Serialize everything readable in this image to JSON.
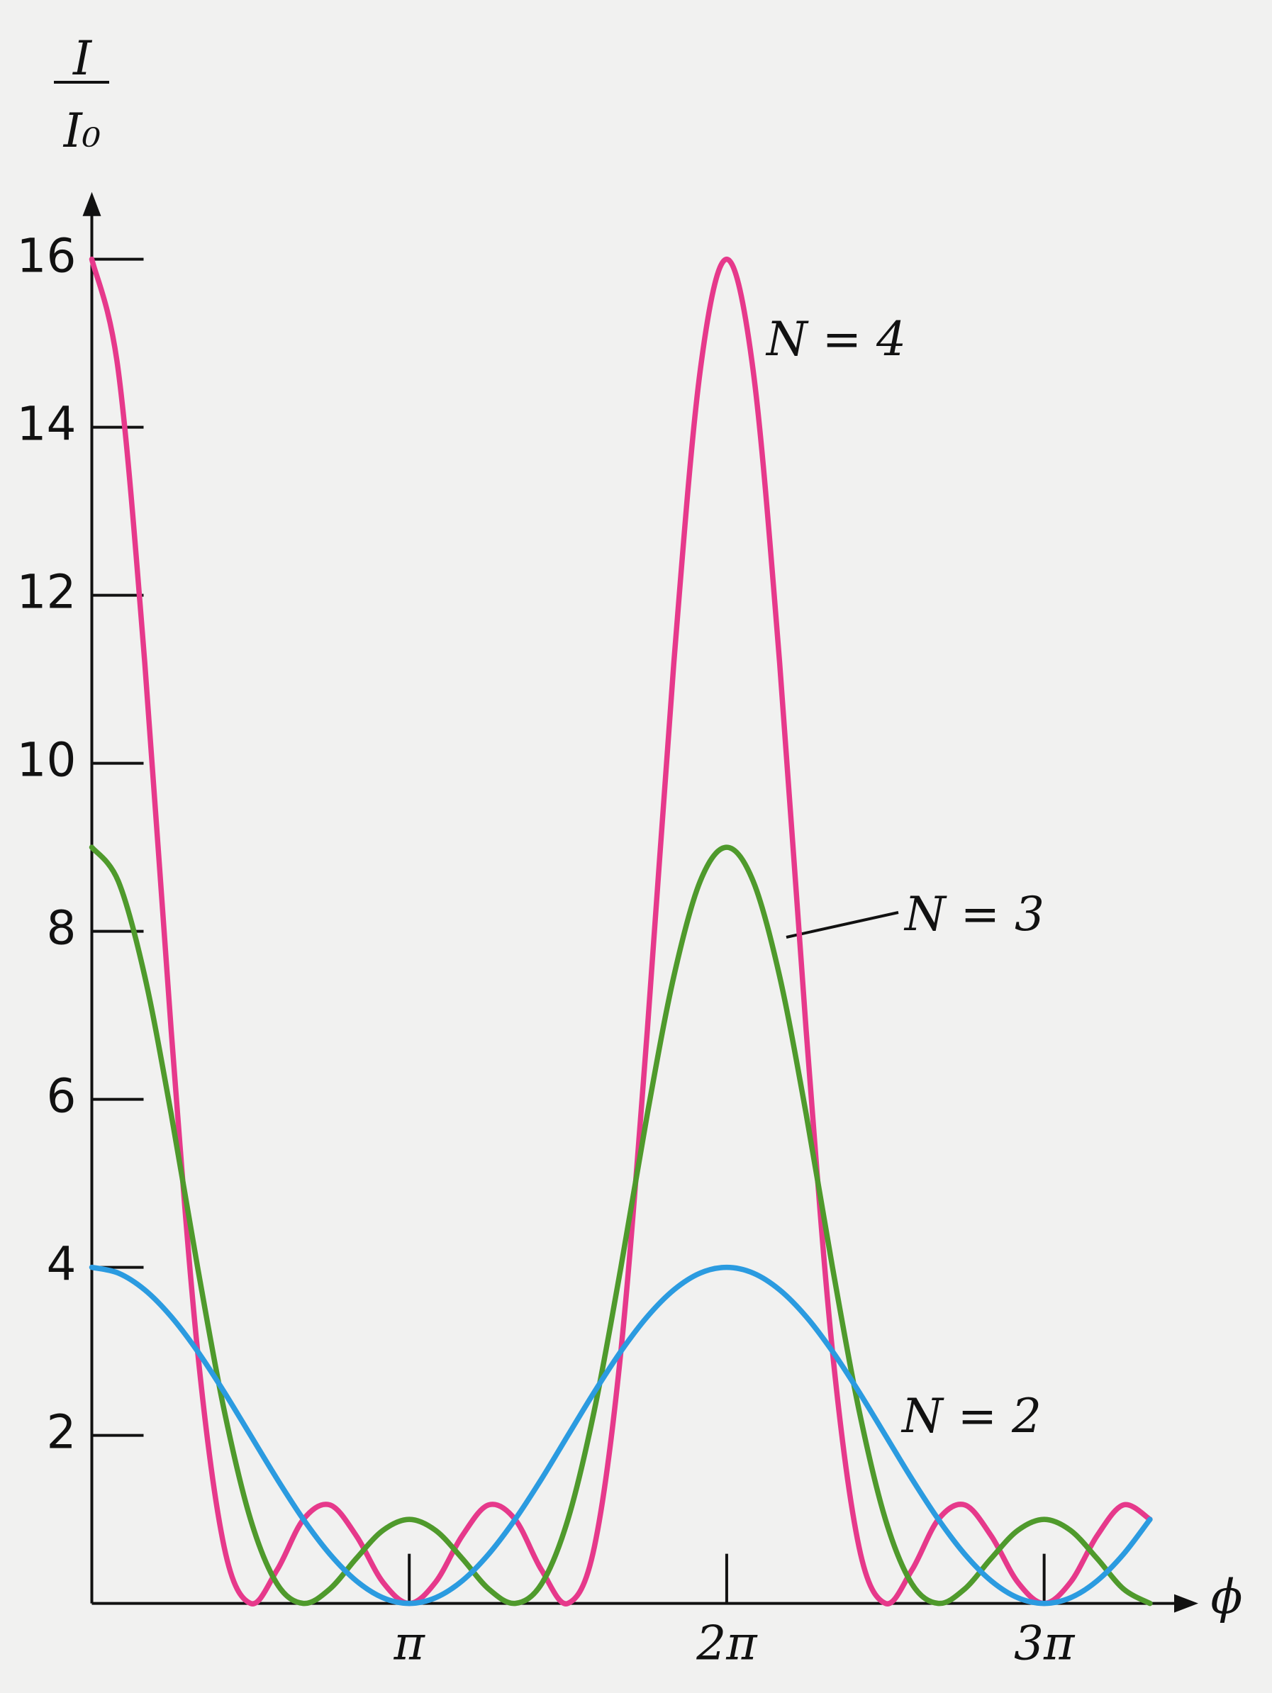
{
  "chart_data": {
    "type": "line",
    "y_label_numerator": "I",
    "y_label_denominator": "I₀",
    "x_label": "ϕ",
    "x": [
      0,
      0.262,
      0.524,
      0.785,
      1.047,
      1.309,
      1.571,
      1.833,
      2.094,
      2.356,
      2.618,
      2.88,
      3.142,
      3.403,
      3.665,
      3.927,
      4.189,
      4.451,
      4.712,
      4.974,
      5.236,
      5.498,
      5.76,
      6.021,
      6.283,
      6.545,
      6.807,
      7.069,
      7.33,
      7.592,
      7.854,
      8.116,
      8.378,
      8.639,
      8.901,
      9.163,
      9.425,
      9.687,
      9.948,
      10.21,
      10.472
    ],
    "series": [
      {
        "name": "N = 4",
        "color": "#e6398b",
        "values": [
          16,
          14.674,
          11.196,
          6.828,
          3,
          0.675,
          0,
          0.397,
          1,
          1.172,
          0.804,
          0.254,
          0,
          0.254,
          0.804,
          1.172,
          1,
          0.397,
          0,
          0.675,
          3,
          6.828,
          11.196,
          14.674,
          16,
          14.674,
          11.196,
          6.828,
          3,
          0.675,
          0,
          0.397,
          1,
          1.172,
          0.804,
          0.254,
          0,
          0.254,
          0.804,
          1.172,
          1
        ]
      },
      {
        "name": "N = 3",
        "color": "#4f9a2c",
        "values": [
          9,
          8.596,
          7.464,
          5.828,
          4,
          2.303,
          1,
          0.233,
          0,
          0.172,
          0.536,
          0.868,
          1,
          0.868,
          0.536,
          0.172,
          0,
          0.233,
          1,
          2.303,
          4,
          5.828,
          7.464,
          8.596,
          9,
          8.596,
          7.464,
          5.828,
          4,
          2.303,
          1,
          0.233,
          0,
          0.172,
          0.536,
          0.868,
          1,
          0.868,
          0.536,
          0.172,
          0
        ]
      },
      {
        "name": "N = 2",
        "color": "#2b9be0",
        "values": [
          4,
          3.932,
          3.732,
          3.414,
          3,
          2.518,
          2,
          1.482,
          1,
          0.586,
          0.268,
          0.068,
          0,
          0.068,
          0.268,
          0.586,
          1,
          1.482,
          2,
          2.518,
          3,
          3.414,
          3.732,
          3.932,
          4,
          3.932,
          3.732,
          3.414,
          3,
          2.518,
          2,
          1.482,
          1,
          0.586,
          0.268,
          0.068,
          0,
          0.068,
          0.268,
          0.586,
          1
        ]
      }
    ],
    "xlim": [
      0,
      10.95
    ],
    "xticks": [
      {
        "value": 3.1416,
        "label": "π"
      },
      {
        "value": 6.2832,
        "label": "2π"
      },
      {
        "value": 9.4248,
        "label": "3π"
      }
    ],
    "ylim": [
      0,
      16.8
    ],
    "yticks": [
      2,
      4,
      6,
      8,
      10,
      12,
      14,
      16
    ],
    "grid": false
  }
}
